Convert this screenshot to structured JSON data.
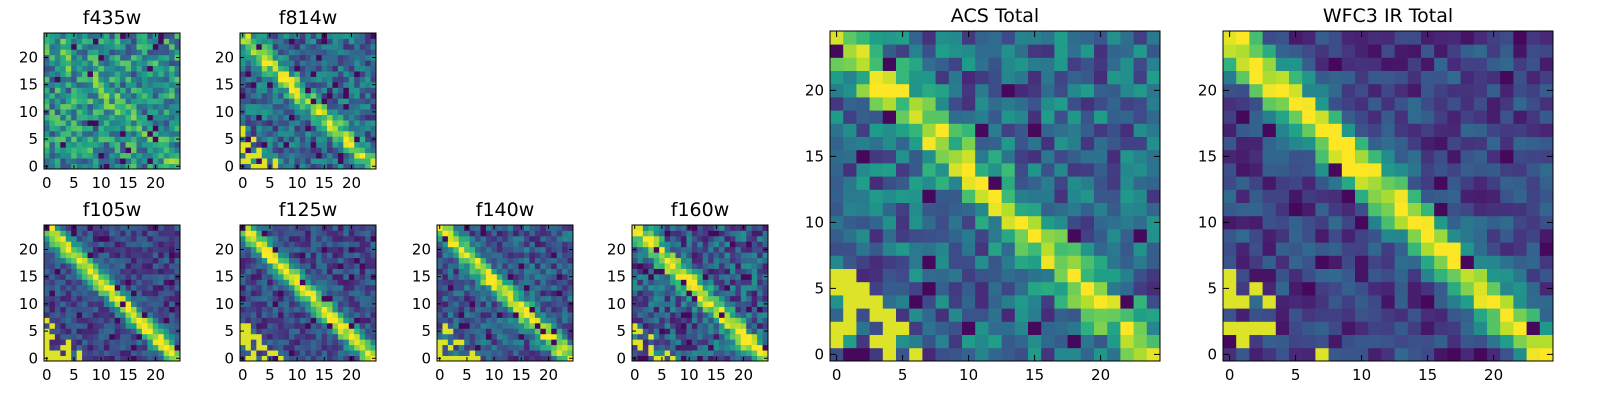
{
  "chart_data": [
    {
      "type": "heatmap",
      "title": "f435w",
      "pattern": "noise",
      "seed": 11,
      "diag_strength": 0.15,
      "noise": 0.55,
      "grid_n": 25,
      "xticks": [
        0,
        5,
        10,
        15,
        20
      ],
      "yticks": [
        0,
        5,
        10,
        15,
        20
      ],
      "colormap": "viridis",
      "grid": false
    },
    {
      "type": "heatmap",
      "title": "f814w",
      "pattern": "diagonal",
      "seed": 23,
      "diag_strength": 0.55,
      "noise": 0.45,
      "grid_n": 25,
      "xticks": [
        0,
        5,
        10,
        15,
        20
      ],
      "yticks": [
        0,
        5,
        10,
        15,
        20
      ],
      "colormap": "viridis",
      "grid": false
    },
    {
      "type": "heatmap",
      "title": "f105w",
      "pattern": "diagonal",
      "seed": 37,
      "diag_strength": 0.75,
      "noise": 0.3,
      "grid_n": 25,
      "xticks": [
        0,
        5,
        10,
        15,
        20
      ],
      "yticks": [
        0,
        5,
        10,
        15,
        20
      ],
      "colormap": "viridis",
      "grid": false
    },
    {
      "type": "heatmap",
      "title": "f125w",
      "pattern": "diagonal",
      "seed": 41,
      "diag_strength": 0.75,
      "noise": 0.32,
      "grid_n": 25,
      "xticks": [
        0,
        5,
        10,
        15,
        20
      ],
      "yticks": [
        0,
        5,
        10,
        15,
        20
      ],
      "colormap": "viridis",
      "grid": false
    },
    {
      "type": "heatmap",
      "title": "f140w",
      "pattern": "diagonal",
      "seed": 53,
      "diag_strength": 0.7,
      "noise": 0.4,
      "grid_n": 25,
      "xticks": [
        0,
        5,
        10,
        15,
        20
      ],
      "yticks": [
        0,
        5,
        10,
        15,
        20
      ],
      "colormap": "viridis",
      "grid": false
    },
    {
      "type": "heatmap",
      "title": "f160w",
      "pattern": "diagonal",
      "seed": 67,
      "diag_strength": 0.75,
      "noise": 0.45,
      "grid_n": 25,
      "xticks": [
        0,
        5,
        10,
        15,
        20
      ],
      "yticks": [
        0,
        5,
        10,
        15,
        20
      ],
      "colormap": "viridis",
      "grid": false
    },
    {
      "type": "heatmap",
      "title": "ACS Total",
      "pattern": "diagonal",
      "seed": 79,
      "diag_strength": 0.55,
      "noise": 0.45,
      "grid_n": 25,
      "xticks": [
        0,
        5,
        10,
        15,
        20
      ],
      "yticks": [
        0,
        5,
        10,
        15,
        20
      ],
      "colormap": "viridis",
      "grid": false
    },
    {
      "type": "heatmap",
      "title": "WFC3 IR Total",
      "pattern": "diagonal",
      "seed": 83,
      "diag_strength": 0.8,
      "noise": 0.3,
      "grid_n": 25,
      "xticks": [
        0,
        5,
        10,
        15,
        20
      ],
      "yticks": [
        0,
        5,
        10,
        15,
        20
      ],
      "colormap": "viridis",
      "grid": false
    }
  ]
}
